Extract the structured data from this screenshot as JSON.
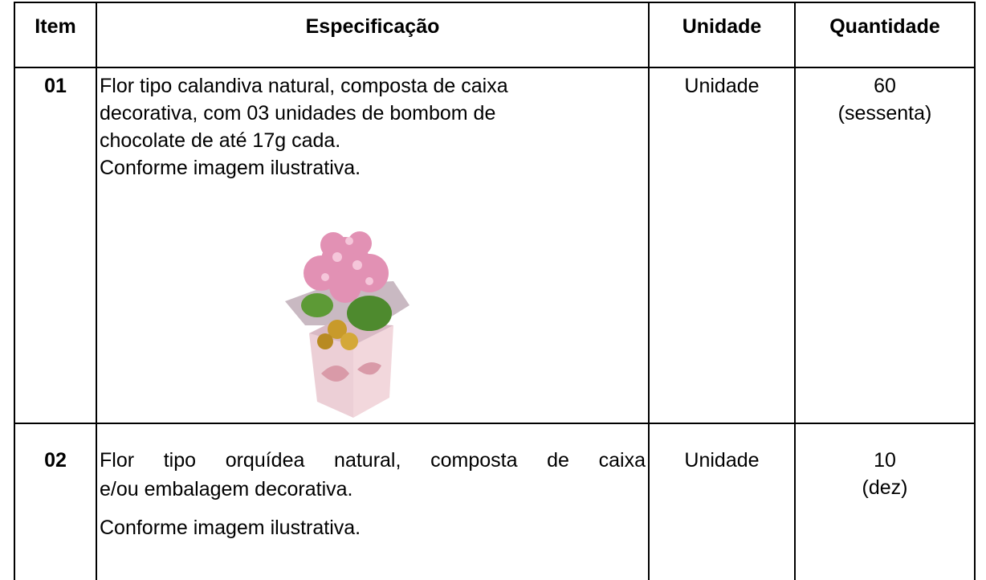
{
  "table": {
    "headers": [
      "Item",
      "Especificação",
      "Unidade",
      "Quantidade"
    ],
    "rows": [
      {
        "item": "01",
        "description": [
          "Flor tipo calandiva natural, composta de caixa",
          "decorativa, com 03 unidades de bombom de",
          "chocolate de até 17g cada.",
          "Conforme imagem ilustrativa."
        ],
        "unit": "Unidade",
        "quantity": [
          "60",
          "(sessenta)"
        ]
      },
      {
        "item": "02",
        "description": [
          "Flor tipo orquídea natural, composta de caixa",
          "e/ou embalagem decorativa.",
          "Conforme imagem ilustrativa."
        ],
        "unit": "Unidade",
        "quantity": [
          "10",
          "(dez)"
        ]
      }
    ]
  }
}
